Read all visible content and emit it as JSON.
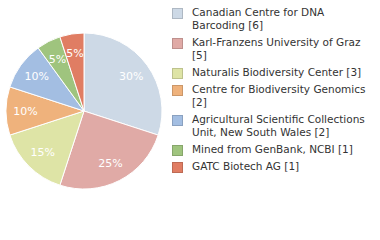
{
  "chart_data": {
    "type": "pie",
    "categories": [
      "Canadian Centre for DNA Barcoding [6]",
      "Karl-Franzens University of Graz [5]",
      "Naturalis Biodiversity Center [3]",
      "Centre for Biodiversity Genomics [2]",
      "Agricultural Scientific Collections Unit, New South Wales [2]",
      "Mined from GenBank, NCBI [1]",
      "GATC Biotech AG [1]"
    ],
    "values": [
      30,
      25,
      15,
      10,
      10,
      5,
      5
    ],
    "value_labels": [
      "30%",
      "25%",
      "15%",
      "10%",
      "10%",
      "5%",
      "5%"
    ],
    "colors": [
      "#cdd9e6",
      "#e0aaa6",
      "#dee4a6",
      "#efb27c",
      "#a3bee2",
      "#9fc47e",
      "#e07d63"
    ],
    "data_labels": true,
    "legend": "right"
  }
}
